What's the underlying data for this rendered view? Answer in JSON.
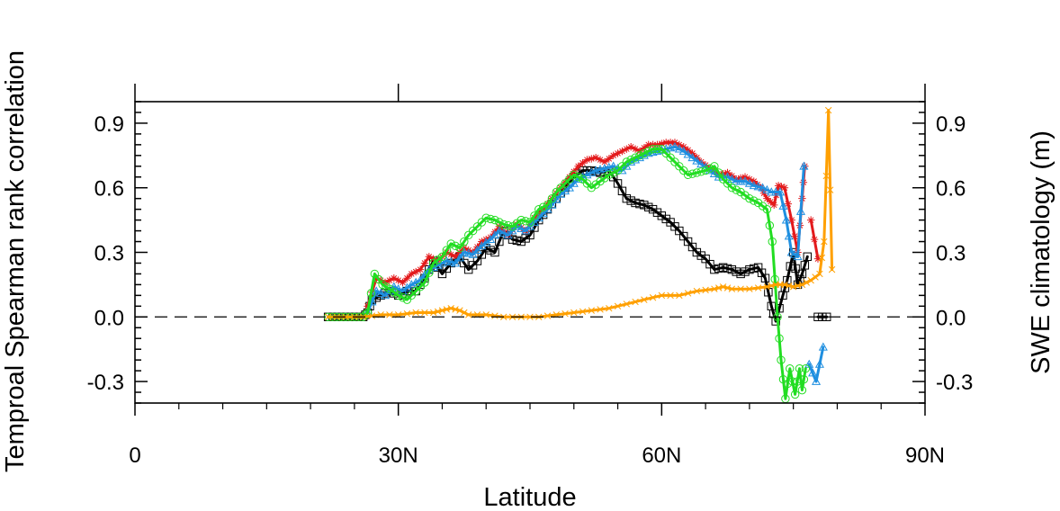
{
  "chart_data": {
    "type": "line",
    "xlabel": "Latitude",
    "ylabel_left": "Temproal Spearman rank correlation",
    "ylabel_right": "SWE climatology (m)",
    "xlim": [
      0,
      90
    ],
    "ylim": [
      -0.4,
      1.0
    ],
    "x_ticks": [
      0,
      30,
      60,
      90
    ],
    "x_tick_labels": [
      "0",
      "30N",
      "60N",
      "90N"
    ],
    "y_ticks": [
      -0.3,
      0.0,
      0.3,
      0.6,
      0.9
    ],
    "y_tick_labels": [
      "-0.3",
      "0.0",
      "0.3",
      "0.6",
      "0.9"
    ],
    "reference_line": {
      "y": 0.0,
      "style": "dashed"
    },
    "grid": false,
    "series": [
      {
        "color": "#000000",
        "marker": "square",
        "segments": [
          [
            [
              22,
              0
            ],
            [
              23,
              0
            ],
            [
              24,
              0
            ],
            [
              25,
              0
            ],
            [
              26,
              0
            ],
            [
              26.5,
              0.02
            ],
            [
              27,
              0.08
            ],
            [
              28,
              0.1
            ],
            [
              29,
              0.12
            ],
            [
              30,
              0.1
            ],
            [
              31,
              0.12
            ],
            [
              32,
              0.12
            ],
            [
              33,
              0.18
            ],
            [
              34,
              0.26
            ],
            [
              35,
              0.2
            ],
            [
              36,
              0.25
            ],
            [
              37,
              0.28
            ],
            [
              38,
              0.22
            ],
            [
              39,
              0.26
            ],
            [
              40,
              0.32
            ],
            [
              41,
              0.3
            ],
            [
              42,
              0.4
            ],
            [
              43,
              0.36
            ],
            [
              44,
              0.35
            ],
            [
              45,
              0.38
            ],
            [
              46,
              0.45
            ],
            [
              47,
              0.5
            ],
            [
              48,
              0.55
            ],
            [
              49,
              0.6
            ],
            [
              50,
              0.65
            ],
            [
              51,
              0.68
            ],
            [
              52,
              0.68
            ],
            [
              53,
              0.67
            ],
            [
              54,
              0.68
            ],
            [
              55,
              0.62
            ],
            [
              56,
              0.55
            ],
            [
              57,
              0.53
            ],
            [
              58,
              0.52
            ],
            [
              59,
              0.5
            ],
            [
              60,
              0.47
            ],
            [
              61,
              0.44
            ],
            [
              62,
              0.4
            ],
            [
              63,
              0.35
            ],
            [
              64,
              0.3
            ],
            [
              65,
              0.27
            ],
            [
              66,
              0.22
            ],
            [
              67,
              0.23
            ],
            [
              68,
              0.22
            ],
            [
              69,
              0.2
            ],
            [
              70,
              0.22
            ],
            [
              71,
              0.23
            ],
            [
              71.8,
              0.18
            ],
            [
              72.5,
              0.05
            ],
            [
              73,
              -0.02
            ],
            [
              73.8,
              0.1
            ],
            [
              74.3,
              0.17
            ],
            [
              75,
              0.3
            ],
            [
              75.5,
              0.15
            ],
            [
              76,
              0.2
            ],
            [
              76.6,
              0.28
            ]
          ],
          [
            [
              77.8,
              0
            ],
            [
              78.8,
              0
            ]
          ]
        ]
      },
      {
        "color": "#e31a1c",
        "marker": "star",
        "segments": [
          [
            [
              26.5,
              0.05
            ],
            [
              27.5,
              0.18
            ],
            [
              28.5,
              0.16
            ],
            [
              29.5,
              0.18
            ],
            [
              30.5,
              0.16
            ],
            [
              31.5,
              0.2
            ],
            [
              32.5,
              0.22
            ],
            [
              33.5,
              0.28
            ],
            [
              34.5,
              0.26
            ],
            [
              35.5,
              0.3
            ],
            [
              36.5,
              0.28
            ],
            [
              37.5,
              0.32
            ],
            [
              38.5,
              0.3
            ],
            [
              39.5,
              0.35
            ],
            [
              40.5,
              0.37
            ],
            [
              41.5,
              0.42
            ],
            [
              42.5,
              0.38
            ],
            [
              43.5,
              0.43
            ],
            [
              44.5,
              0.4
            ],
            [
              45.5,
              0.46
            ],
            [
              46.5,
              0.5
            ],
            [
              47.5,
              0.55
            ],
            [
              48.5,
              0.6
            ],
            [
              49.5,
              0.65
            ],
            [
              50.5,
              0.7
            ],
            [
              51.5,
              0.73
            ],
            [
              52.5,
              0.74
            ],
            [
              53.5,
              0.72
            ],
            [
              54.5,
              0.75
            ],
            [
              55.5,
              0.77
            ],
            [
              56.5,
              0.79
            ],
            [
              57.5,
              0.77
            ],
            [
              58.5,
              0.8
            ],
            [
              59.5,
              0.8
            ],
            [
              60.5,
              0.81
            ],
            [
              61.5,
              0.81
            ],
            [
              62.5,
              0.79
            ],
            [
              63.5,
              0.76
            ],
            [
              64.5,
              0.72
            ],
            [
              65.5,
              0.69
            ],
            [
              66.5,
              0.66
            ],
            [
              67.5,
              0.67
            ],
            [
              68.5,
              0.64
            ],
            [
              69.5,
              0.65
            ],
            [
              70.5,
              0.63
            ],
            [
              71.3,
              0.6
            ],
            [
              72,
              0.55
            ],
            [
              72.8,
              0.52
            ],
            [
              73.3,
              0.61
            ],
            [
              74,
              0.6
            ],
            [
              74.8,
              0.45
            ],
            [
              75.5,
              0.3
            ],
            [
              76,
              0.55
            ],
            [
              76.3,
              0.7
            ]
          ],
          [
            [
              77,
              0.45
            ],
            [
              77.8,
              0.27
            ]
          ]
        ]
      },
      {
        "color": "#1f8fe0",
        "marker": "triangle",
        "segments": [
          [
            [
              26.5,
              0.02
            ],
            [
              27.5,
              0.12
            ],
            [
              28.5,
              0.1
            ],
            [
              29.5,
              0.14
            ],
            [
              30.5,
              0.12
            ],
            [
              31.5,
              0.15
            ],
            [
              32.5,
              0.17
            ],
            [
              33.5,
              0.22
            ],
            [
              34.5,
              0.24
            ],
            [
              35.5,
              0.26
            ],
            [
              36.5,
              0.25
            ],
            [
              37.5,
              0.3
            ],
            [
              38.5,
              0.29
            ],
            [
              39.5,
              0.33
            ],
            [
              40.5,
              0.36
            ],
            [
              41.5,
              0.4
            ],
            [
              42.5,
              0.38
            ],
            [
              43.5,
              0.42
            ],
            [
              44.5,
              0.4
            ],
            [
              45.5,
              0.44
            ],
            [
              46.5,
              0.48
            ],
            [
              47.5,
              0.52
            ],
            [
              48.5,
              0.57
            ],
            [
              49.5,
              0.6
            ],
            [
              50.5,
              0.64
            ],
            [
              51.5,
              0.66
            ],
            [
              52.5,
              0.68
            ],
            [
              53.5,
              0.69
            ],
            [
              54.5,
              0.7
            ],
            [
              55.5,
              0.68
            ],
            [
              56.5,
              0.72
            ],
            [
              57.5,
              0.74
            ],
            [
              58.5,
              0.76
            ],
            [
              59.5,
              0.77
            ],
            [
              60.5,
              0.78
            ],
            [
              61.5,
              0.79
            ],
            [
              62.5,
              0.77
            ],
            [
              63.5,
              0.74
            ],
            [
              64.5,
              0.71
            ],
            [
              65.5,
              0.68
            ],
            [
              66.5,
              0.65
            ],
            [
              67.5,
              0.65
            ],
            [
              68.5,
              0.63
            ],
            [
              69.5,
              0.63
            ],
            [
              70.5,
              0.61
            ],
            [
              71.5,
              0.6
            ],
            [
              72.5,
              0.58
            ],
            [
              73.5,
              0.58
            ],
            [
              74.2,
              0.45
            ],
            [
              74.8,
              0.3
            ],
            [
              75.5,
              0.28
            ],
            [
              76.2,
              0.7
            ]
          ],
          [
            [
              76.8,
              -0.22
            ],
            [
              77.6,
              -0.3
            ],
            [
              78.4,
              -0.14
            ]
          ]
        ]
      },
      {
        "color": "#22dd22",
        "marker": "circle",
        "segments": [
          [
            [
              22,
              0
            ],
            [
              23,
              0
            ],
            [
              24,
              0
            ],
            [
              25,
              0
            ],
            [
              26,
              0
            ],
            [
              26.5,
              0.02
            ],
            [
              27.3,
              0.2
            ],
            [
              28.2,
              0.15
            ],
            [
              29,
              0.13
            ],
            [
              30,
              0.1
            ],
            [
              31,
              0.08
            ],
            [
              32,
              0.12
            ],
            [
              33,
              0.16
            ],
            [
              34,
              0.25
            ],
            [
              35,
              0.28
            ],
            [
              36,
              0.34
            ],
            [
              37,
              0.32
            ],
            [
              38,
              0.38
            ],
            [
              39,
              0.42
            ],
            [
              40,
              0.46
            ],
            [
              41,
              0.45
            ],
            [
              42,
              0.43
            ],
            [
              43,
              0.42
            ],
            [
              44,
              0.45
            ],
            [
              45,
              0.44
            ],
            [
              46,
              0.5
            ],
            [
              47,
              0.52
            ],
            [
              48,
              0.58
            ],
            [
              49,
              0.62
            ],
            [
              50,
              0.66
            ],
            [
              51,
              0.64
            ],
            [
              52,
              0.6
            ],
            [
              53,
              0.63
            ],
            [
              54,
              0.66
            ],
            [
              55,
              0.68
            ],
            [
              56,
              0.72
            ],
            [
              57,
              0.74
            ],
            [
              58,
              0.76
            ],
            [
              59,
              0.78
            ],
            [
              60,
              0.78
            ],
            [
              61,
              0.74
            ],
            [
              62,
              0.7
            ],
            [
              63,
              0.66
            ],
            [
              64,
              0.67
            ],
            [
              65,
              0.68
            ],
            [
              66,
              0.7
            ],
            [
              67,
              0.64
            ],
            [
              68,
              0.6
            ],
            [
              69,
              0.58
            ],
            [
              70,
              0.55
            ],
            [
              71,
              0.53
            ],
            [
              72,
              0.5
            ],
            [
              72.6,
              0.35
            ],
            [
              73.2,
              0.0
            ],
            [
              73.6,
              -0.2
            ],
            [
              74.1,
              -0.38
            ],
            [
              74.6,
              -0.24
            ],
            [
              75.2,
              -0.36
            ],
            [
              75.7,
              -0.24
            ],
            [
              76,
              -0.34
            ],
            [
              76.4,
              -0.24
            ]
          ]
        ]
      },
      {
        "color": "#ffa000",
        "marker": "x",
        "segments": [
          [
            [
              22,
              0
            ],
            [
              24,
              0
            ],
            [
              26,
              0
            ],
            [
              28,
              0.01
            ],
            [
              30,
              0.01
            ],
            [
              32,
              0.02
            ],
            [
              34,
              0.02
            ],
            [
              35,
              0.03
            ],
            [
              36,
              0.04
            ],
            [
              37,
              0.03
            ],
            [
              38,
              0.01
            ],
            [
              40,
              0.01
            ],
            [
              42,
              0.0
            ],
            [
              44,
              0.0
            ],
            [
              46,
              0.0
            ],
            [
              48,
              0.01
            ],
            [
              50,
              0.02
            ],
            [
              52,
              0.03
            ],
            [
              54,
              0.04
            ],
            [
              56,
              0.06
            ],
            [
              58,
              0.08
            ],
            [
              60,
              0.1
            ],
            [
              62,
              0.1
            ],
            [
              64,
              0.12
            ],
            [
              66,
              0.13
            ],
            [
              67,
              0.14
            ],
            [
              68,
              0.13
            ],
            [
              70,
              0.13
            ],
            [
              72,
              0.14
            ],
            [
              73,
              0.15
            ],
            [
              74,
              0.15
            ],
            [
              75,
              0.14
            ],
            [
              76,
              0.15
            ],
            [
              77,
              0.17
            ],
            [
              78,
              0.2
            ],
            [
              78.5,
              0.35
            ],
            [
              79.0,
              0.96
            ],
            [
              79.4,
              0.22
            ]
          ]
        ]
      }
    ]
  }
}
